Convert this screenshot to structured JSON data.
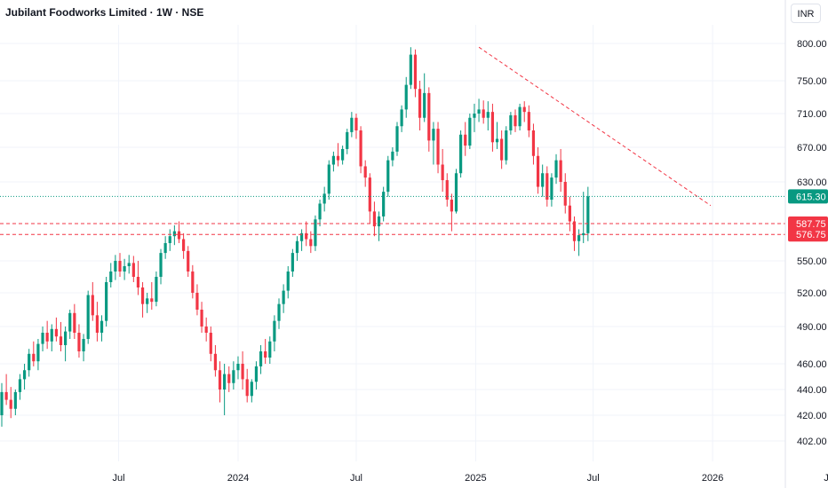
{
  "header": {
    "title": "Jubilant Foodworks Limited · 1W · NSE",
    "currency": "INR"
  },
  "colors": {
    "up": "#089981",
    "down": "#f23645",
    "grid": "#f0f3fa",
    "trendline": "#f23645",
    "last_price_line": "#089981"
  },
  "chart_data": {
    "type": "candlestick",
    "title": "Jubilant Foodworks Limited · 1W · NSE",
    "ylim": [
      393,
      825
    ],
    "y_ticks": [
      800,
      750,
      710,
      670,
      630,
      550,
      520,
      490,
      460,
      440,
      420,
      402
    ],
    "y_tick_labels": [
      "800.00",
      "750.00",
      "710.00",
      "670.00",
      "630.00",
      "550.00",
      "520.00",
      "490.00",
      "460.00",
      "440.00",
      "420.00",
      "402.00"
    ],
    "x_ticks": [
      {
        "label": "Jul",
        "date": "2023-07-01"
      },
      {
        "label": "2024",
        "date": "2024-01-01"
      },
      {
        "label": "Jul",
        "date": "2024-07-01"
      },
      {
        "label": "2025",
        "date": "2025-01-01"
      },
      {
        "label": "Jul",
        "date": "2025-07-01"
      },
      {
        "label": "2026",
        "date": "2026-01-01"
      },
      {
        "label": "Jul",
        "date": "2026-07-01"
      }
    ],
    "first_candle_date": "2023-01-02",
    "interval": "1W",
    "candles": [
      [
        420,
        445,
        412,
        438
      ],
      [
        438,
        452,
        428,
        432
      ],
      [
        432,
        442,
        418,
        425
      ],
      [
        425,
        440,
        420,
        438
      ],
      [
        438,
        452,
        432,
        448
      ],
      [
        448,
        460,
        440,
        455
      ],
      [
        455,
        472,
        450,
        468
      ],
      [
        468,
        478,
        458,
        462
      ],
      [
        462,
        480,
        455,
        476
      ],
      [
        476,
        490,
        470,
        485
      ],
      [
        485,
        495,
        472,
        478
      ],
      [
        478,
        492,
        470,
        488
      ],
      [
        488,
        498,
        478,
        482
      ],
      [
        482,
        494,
        470,
        475
      ],
      [
        475,
        490,
        462,
        486
      ],
      [
        486,
        505,
        480,
        502
      ],
      [
        502,
        510,
        480,
        485
      ],
      [
        485,
        492,
        465,
        470
      ],
      [
        470,
        484,
        462,
        480
      ],
      [
        480,
        522,
        476,
        518
      ],
      [
        518,
        530,
        495,
        500
      ],
      [
        500,
        512,
        478,
        485
      ],
      [
        485,
        500,
        478,
        495
      ],
      [
        495,
        535,
        490,
        530
      ],
      [
        530,
        548,
        525,
        540
      ],
      [
        540,
        556,
        532,
        550
      ],
      [
        550,
        558,
        535,
        540
      ],
      [
        540,
        552,
        532,
        545
      ],
      [
        545,
        556,
        538,
        548
      ],
      [
        548,
        555,
        530,
        535
      ],
      [
        535,
        550,
        518,
        525
      ],
      [
        525,
        530,
        498,
        510
      ],
      [
        510,
        520,
        502,
        515
      ],
      [
        515,
        530,
        505,
        512
      ],
      [
        512,
        540,
        508,
        535
      ],
      [
        535,
        562,
        528,
        558
      ],
      [
        558,
        575,
        552,
        568
      ],
      [
        568,
        582,
        560,
        575
      ],
      [
        575,
        586,
        566,
        580
      ],
      [
        580,
        590,
        568,
        572
      ],
      [
        572,
        578,
        552,
        560
      ],
      [
        560,
        565,
        535,
        540
      ],
      [
        540,
        546,
        515,
        520
      ],
      [
        520,
        528,
        500,
        505
      ],
      [
        505,
        512,
        485,
        490
      ],
      [
        490,
        498,
        478,
        485
      ],
      [
        485,
        490,
        462,
        468
      ],
      [
        468,
        475,
        450,
        455
      ],
      [
        455,
        462,
        430,
        440
      ],
      [
        440,
        460,
        420,
        452
      ],
      [
        452,
        458,
        438,
        445
      ],
      [
        445,
        462,
        440,
        455
      ],
      [
        455,
        466,
        448,
        460
      ],
      [
        460,
        470,
        440,
        448
      ],
      [
        448,
        456,
        430,
        435
      ],
      [
        435,
        448,
        430,
        446
      ],
      [
        446,
        462,
        440,
        458
      ],
      [
        458,
        475,
        452,
        470
      ],
      [
        470,
        480,
        460,
        465
      ],
      [
        465,
        482,
        460,
        478
      ],
      [
        478,
        500,
        470,
        495
      ],
      [
        495,
        515,
        488,
        510
      ],
      [
        510,
        528,
        502,
        522
      ],
      [
        522,
        545,
        515,
        540
      ],
      [
        540,
        562,
        535,
        558
      ],
      [
        558,
        575,
        550,
        570
      ],
      [
        570,
        582,
        560,
        578
      ],
      [
        578,
        590,
        565,
        572
      ],
      [
        572,
        580,
        558,
        565
      ],
      [
        565,
        596,
        560,
        592
      ],
      [
        592,
        612,
        585,
        608
      ],
      [
        608,
        625,
        600,
        618
      ],
      [
        618,
        655,
        612,
        650
      ],
      [
        650,
        665,
        642,
        660
      ],
      [
        660,
        675,
        648,
        655
      ],
      [
        655,
        672,
        650,
        668
      ],
      [
        668,
        692,
        662,
        688
      ],
      [
        688,
        712,
        682,
        705
      ],
      [
        705,
        710,
        680,
        690
      ],
      [
        690,
        695,
        640,
        648
      ],
      [
        648,
        655,
        625,
        635
      ],
      [
        635,
        640,
        588,
        600
      ],
      [
        600,
        610,
        575,
        585
      ],
      [
        585,
        600,
        570,
        595
      ],
      [
        595,
        625,
        590,
        620
      ],
      [
        620,
        660,
        615,
        655
      ],
      [
        655,
        670,
        648,
        665
      ],
      [
        665,
        700,
        660,
        695
      ],
      [
        695,
        720,
        688,
        715
      ],
      [
        715,
        755,
        705,
        745
      ],
      [
        745,
        795,
        740,
        785
      ],
      [
        785,
        792,
        730,
        740
      ],
      [
        740,
        750,
        690,
        705
      ],
      [
        705,
        760,
        700,
        735
      ],
      [
        735,
        742,
        665,
        678
      ],
      [
        678,
        700,
        650,
        692
      ],
      [
        692,
        700,
        640,
        650
      ],
      [
        650,
        668,
        620,
        632
      ],
      [
        632,
        640,
        605,
        612
      ],
      [
        612,
        618,
        580,
        600
      ],
      [
        600,
        645,
        598,
        640
      ],
      [
        640,
        690,
        635,
        685
      ],
      [
        685,
        700,
        660,
        672
      ],
      [
        672,
        710,
        668,
        705
      ],
      [
        705,
        722,
        688,
        710
      ],
      [
        710,
        728,
        700,
        715
      ],
      [
        715,
        726,
        698,
        705
      ],
      [
        705,
        725,
        690,
        712
      ],
      [
        712,
        722,
        665,
        676
      ],
      [
        676,
        700,
        668,
        680
      ],
      [
        680,
        690,
        645,
        655
      ],
      [
        655,
        695,
        650,
        690
      ],
      [
        690,
        712,
        685,
        708
      ],
      [
        708,
        715,
        688,
        695
      ],
      [
        695,
        722,
        690,
        718
      ],
      [
        718,
        725,
        700,
        712
      ],
      [
        712,
        720,
        682,
        690
      ],
      [
        690,
        698,
        650,
        660
      ],
      [
        660,
        670,
        618,
        625
      ],
      [
        625,
        650,
        615,
        640
      ],
      [
        640,
        648,
        605,
        612
      ],
      [
        612,
        640,
        605,
        635
      ],
      [
        635,
        662,
        628,
        655
      ],
      [
        655,
        668,
        620,
        630
      ],
      [
        630,
        640,
        598,
        606
      ],
      [
        606,
        615,
        580,
        590
      ],
      [
        590,
        595,
        560,
        570
      ],
      [
        570,
        582,
        555,
        576
      ],
      [
        576,
        620,
        568,
        578
      ],
      [
        578,
        625,
        570,
        615.3
      ]
    ],
    "last_price": 615.3,
    "horizontal_levels": [
      587.75,
      576.75
    ],
    "trendline": {
      "start": {
        "date": "2025-01-06",
        "price": 795
      },
      "end": {
        "date": "2025-12-29",
        "price": 606
      }
    },
    "price_labels": [
      "615.30",
      "587.75",
      "576.75"
    ],
    "grid": true,
    "y_axis_side": "right"
  }
}
